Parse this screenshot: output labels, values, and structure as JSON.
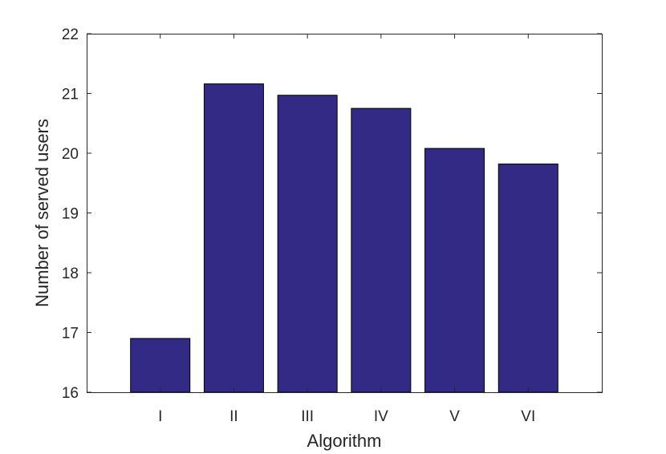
{
  "chart_data": {
    "type": "bar",
    "title": "",
    "xlabel": "Algorithm",
    "ylabel": "Number of served users",
    "categories": [
      "I",
      "II",
      "III",
      "IV",
      "V",
      "VI"
    ],
    "values": [
      16.9,
      21.16,
      20.97,
      20.75,
      20.08,
      19.82
    ],
    "ylim": [
      16,
      22
    ],
    "yticks": [
      16,
      17,
      18,
      19,
      20,
      21,
      22
    ],
    "bar_color": "#332A85",
    "grid": false,
    "legend": "none"
  }
}
